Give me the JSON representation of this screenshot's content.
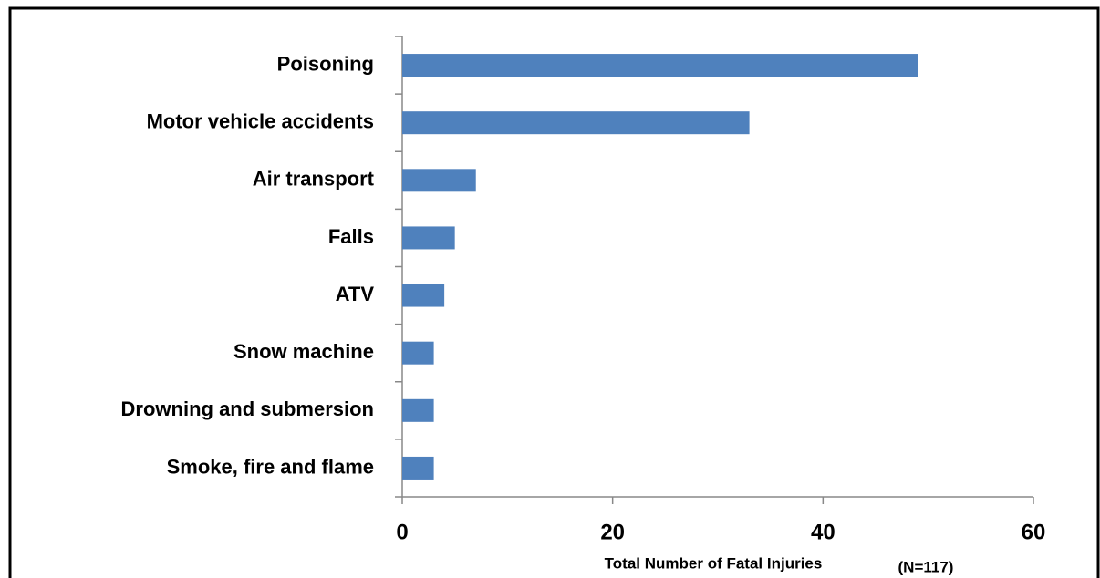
{
  "chart_data": {
    "type": "bar",
    "orientation": "horizontal",
    "categories": [
      "Poisoning",
      "Motor vehicle accidents",
      "Air transport",
      "Falls",
      "ATV",
      "Snow machine",
      "Drowning and submersion",
      "Smoke, fire and flame"
    ],
    "values": [
      49,
      33,
      7,
      5,
      4,
      3,
      3,
      3
    ],
    "color": "#4f81bd",
    "xlim": [
      0,
      60
    ],
    "xticks": [
      0,
      20,
      40,
      60
    ],
    "xlabel": "Total Number of Fatal Injuries",
    "annotation": "(N=117)",
    "grid": false
  }
}
